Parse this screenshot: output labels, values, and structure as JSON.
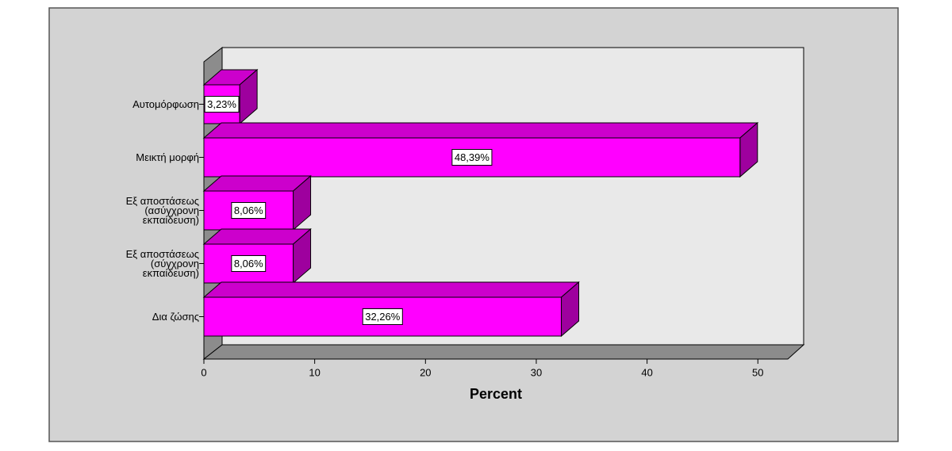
{
  "chart_data": {
    "type": "bar",
    "orientation": "horizontal",
    "xlabel": "Percent",
    "categories": [
      "Αυτομόρφωση",
      "Μεικτή μορφή",
      "Εξ αποστάσεως\n(ασύγχρονη\nεκπαίδευση)",
      "Εξ αποστάσεως\n(σύγχρονη\nεκπαίδευση)",
      "Δια ζώσης"
    ],
    "values": [
      3.23,
      48.39,
      8.06,
      8.06,
      32.26
    ],
    "value_labels": [
      "3,23%",
      "48,39%",
      "8,06%",
      "8,06%",
      "32,26%"
    ],
    "color": "#ff00ff",
    "xlim": [
      0,
      52.7
    ],
    "xticks": [
      0,
      10,
      20,
      30,
      40,
      50
    ]
  }
}
